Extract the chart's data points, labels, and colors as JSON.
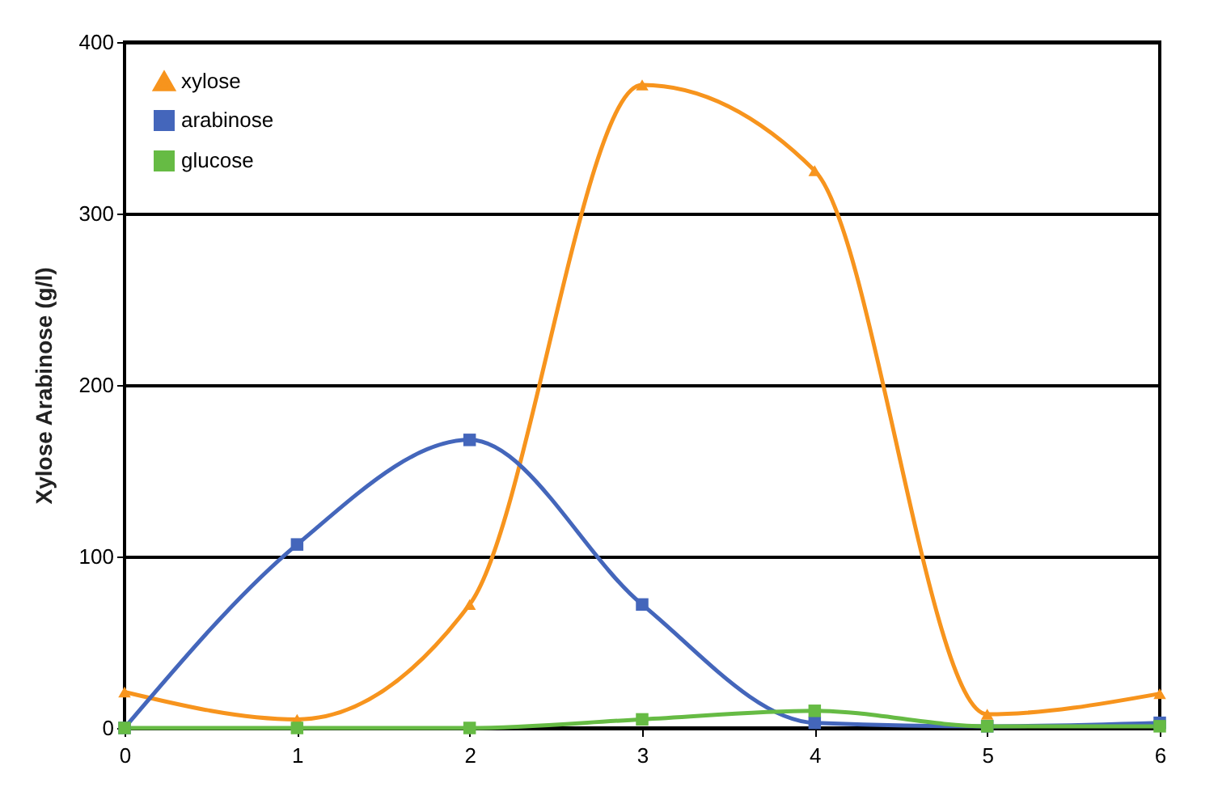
{
  "chart_data": {
    "type": "line",
    "ylabel": "Xylose Arabinose (g/l)",
    "x": [
      0,
      1,
      2,
      3,
      4,
      5,
      6
    ],
    "series": [
      {
        "name": "xylose",
        "color": "#f7941d",
        "marker": "triangle",
        "values": [
          21,
          5,
          72,
          375,
          325,
          8,
          20
        ]
      },
      {
        "name": "arabinose",
        "color": "#4466bb",
        "marker": "square",
        "values": [
          0,
          107,
          168,
          72,
          3,
          1,
          3
        ]
      },
      {
        "name": "glucose",
        "color": "#66bb44",
        "marker": "square",
        "values": [
          0,
          0,
          0,
          5,
          10,
          1,
          1
        ]
      }
    ],
    "xlim": [
      0,
      6
    ],
    "xticks": [
      0,
      1,
      2,
      3,
      4,
      5,
      6
    ],
    "ylim": [
      0,
      400
    ],
    "yticks": [
      0,
      100,
      200,
      300,
      400
    ],
    "grid": "y",
    "legend": "top left",
    "line_style": "solid"
  }
}
